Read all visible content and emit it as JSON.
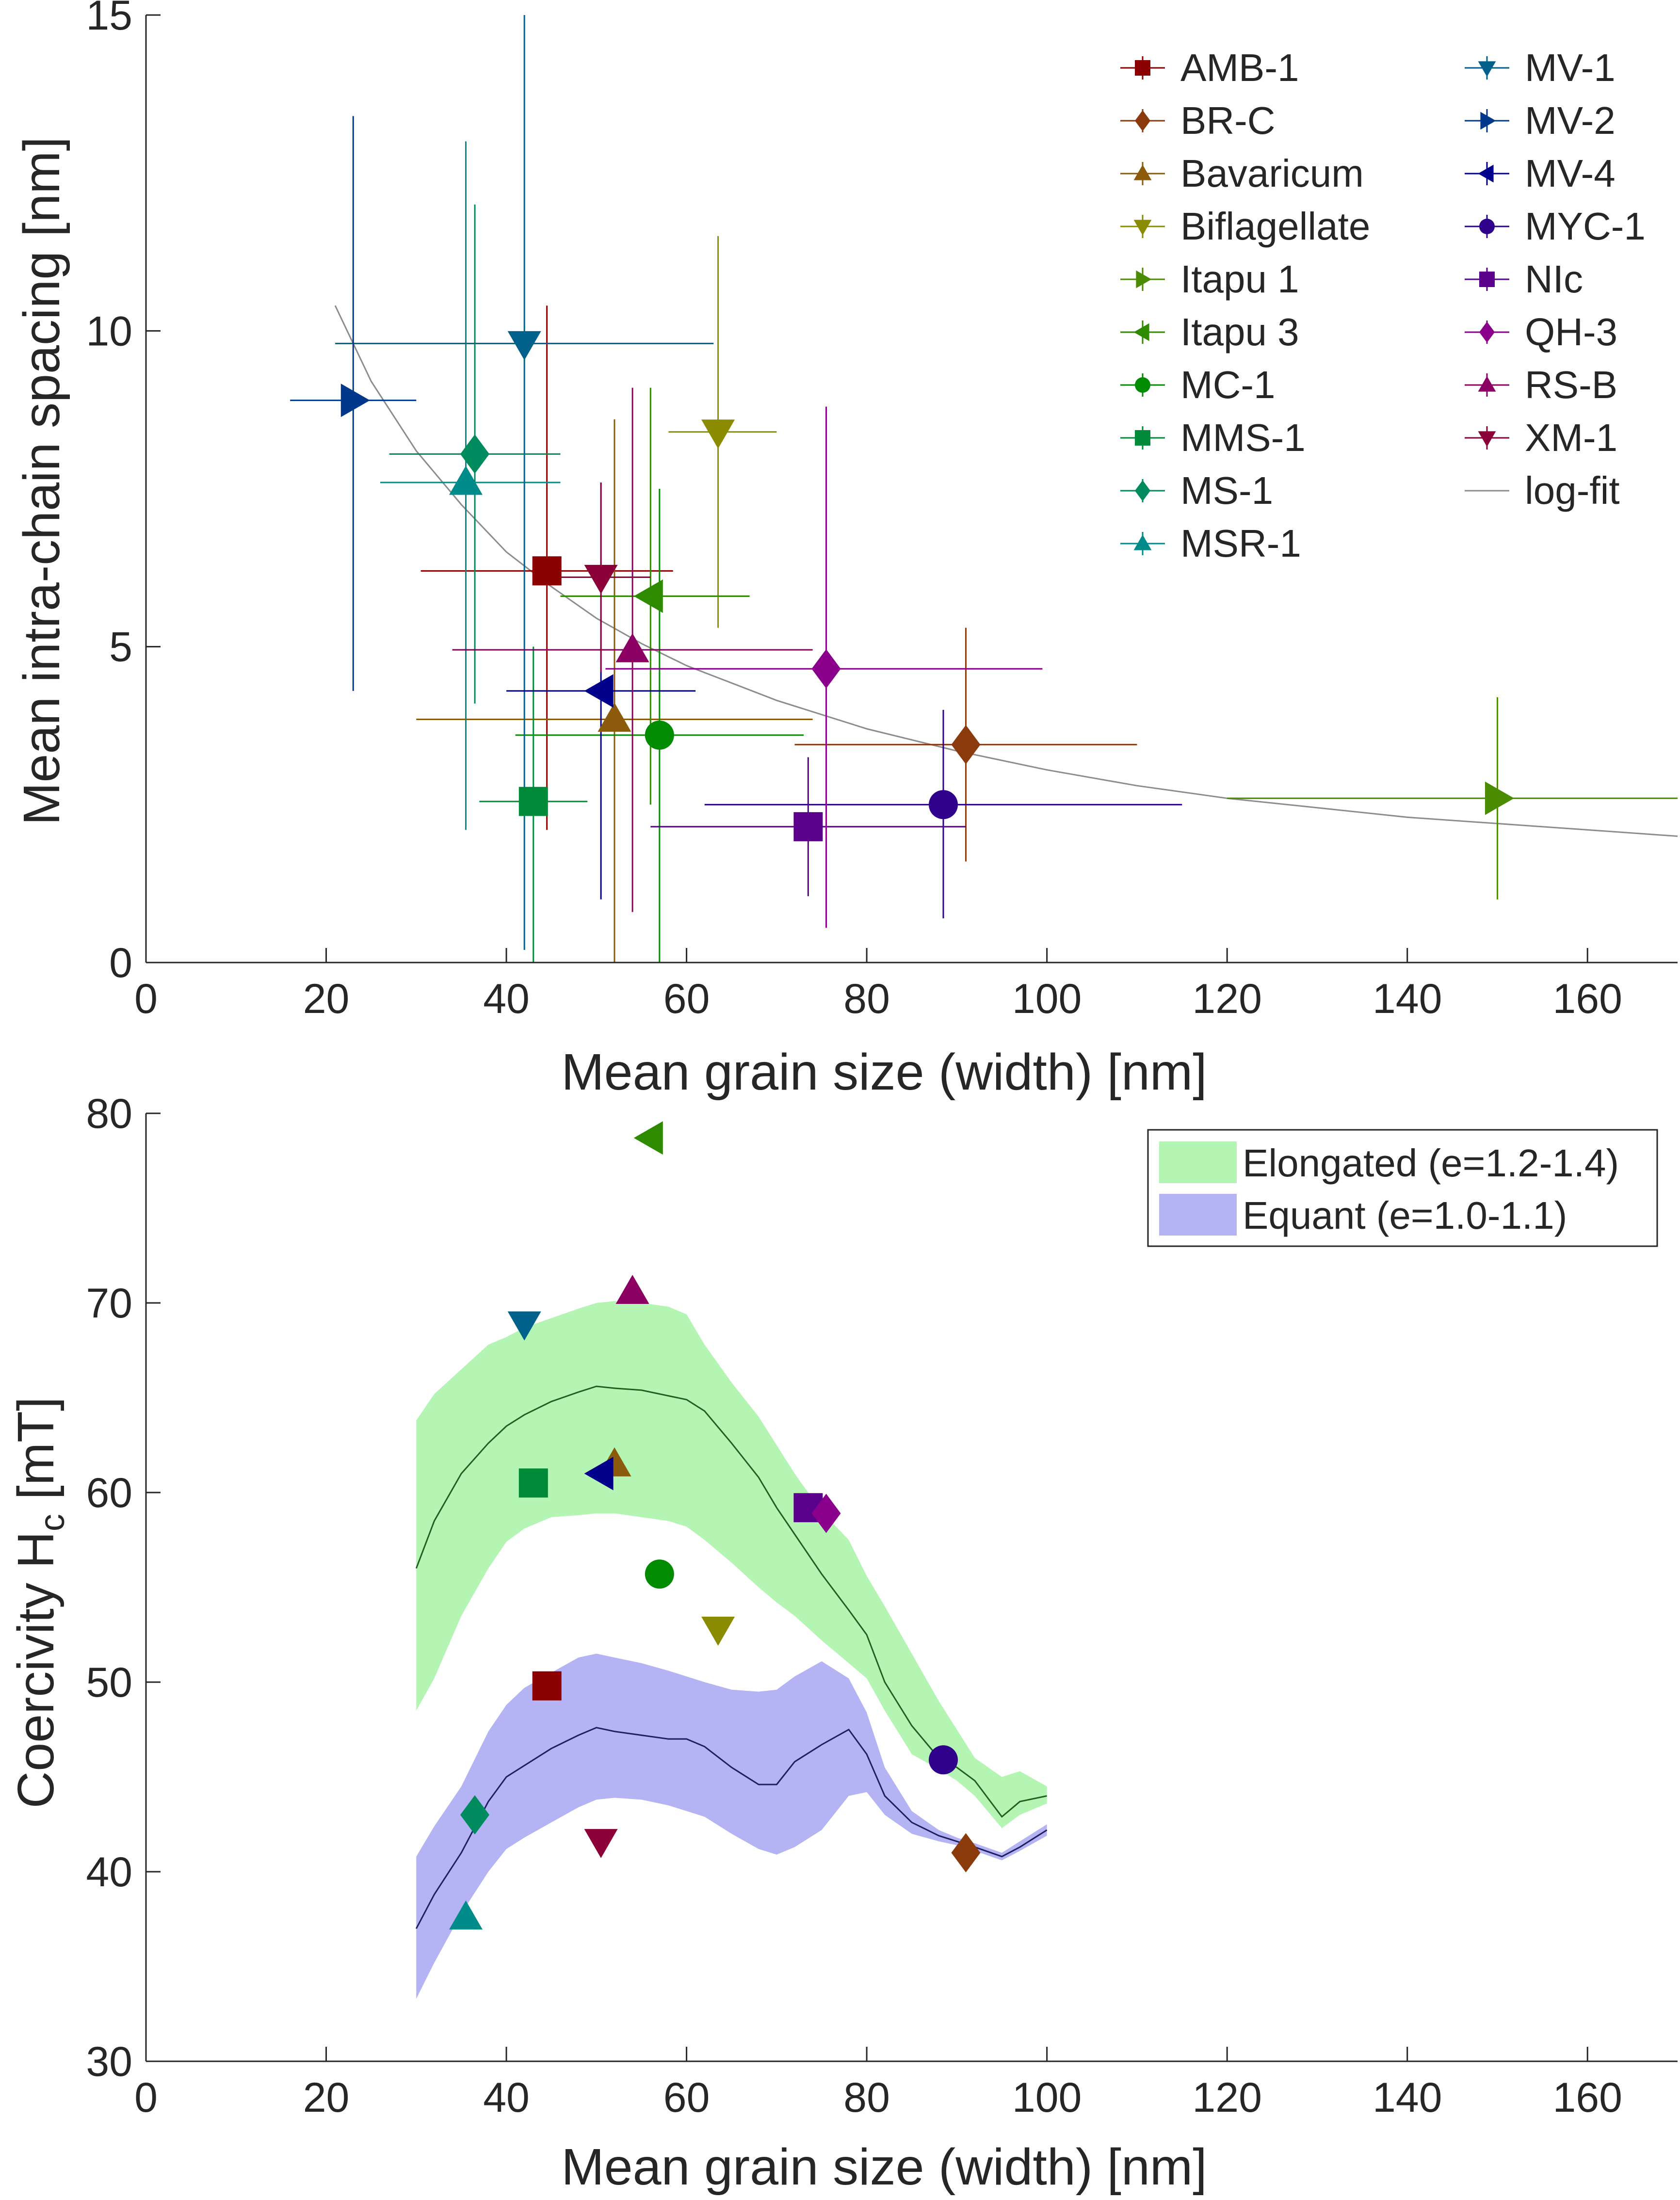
{
  "chart_data": [
    {
      "type": "scatter",
      "xlabel": "Mean grain size (width) [nm]",
      "ylabel": "Mean intra-chain spacing [nm]",
      "xlim": [
        0,
        170
      ],
      "ylim": [
        0,
        15
      ],
      "xticks": [
        "0",
        "20",
        "40",
        "60",
        "80",
        "100",
        "120",
        "140",
        "160"
      ],
      "yticks": [
        "0",
        "5",
        "10",
        "15"
      ],
      "grid": false,
      "legend_position": "top-right",
      "fit": {
        "name": "log-fit",
        "color": "#8c8c8c",
        "x": [
          21,
          25,
          30,
          35,
          40,
          45,
          50,
          55,
          60,
          70,
          80,
          90,
          100,
          110,
          120,
          130,
          140,
          150,
          160,
          170
        ],
        "y": [
          10.4,
          9.2,
          8.1,
          7.25,
          6.5,
          5.95,
          5.45,
          5.05,
          4.7,
          4.15,
          3.7,
          3.35,
          3.05,
          2.8,
          2.6,
          2.45,
          2.3,
          2.2,
          2.1,
          2.0
        ]
      },
      "series": [
        {
          "name": "AMB-1",
          "marker": "square",
          "color": "#8b0000",
          "x": 44.5,
          "y": 6.2,
          "x_err": [
            30.5,
            58.5
          ],
          "y_err": [
            2.1,
            10.4
          ]
        },
        {
          "name": "BR-C",
          "marker": "diamond",
          "color": "#8b3a0b",
          "x": 91,
          "y": 3.45,
          "x_err": [
            72,
            110
          ],
          "y_err": [
            1.6,
            5.3
          ]
        },
        {
          "name": "Bavaricum",
          "marker": "triangle-up",
          "color": "#8b5a0b",
          "x": 52,
          "y": 3.85,
          "x_err": [
            30,
            74
          ],
          "y_err": [
            0,
            8.6
          ]
        },
        {
          "name": "Biflagellate",
          "marker": "triangle-down",
          "color": "#8b8b00",
          "x": 63.5,
          "y": 8.4,
          "x_err": [
            58,
            70
          ],
          "y_err": [
            5.3,
            11.5
          ]
        },
        {
          "name": "Itapu 1",
          "marker": "triangle-right",
          "color": "#4a8b00",
          "x": 150,
          "y": 2.6,
          "x_err": [
            120,
            170
          ],
          "y_err": [
            1.0,
            4.2
          ]
        },
        {
          "name": "Itapu 3",
          "marker": "triangle-left",
          "color": "#2e8b00",
          "x": 56,
          "y": 5.8,
          "x_err": [
            46,
            67
          ],
          "y_err": [
            2.5,
            9.1
          ]
        },
        {
          "name": "MC-1",
          "marker": "circle",
          "color": "#008b00",
          "x": 57,
          "y": 3.6,
          "x_err": [
            41,
            73
          ],
          "y_err": [
            0,
            7.5
          ]
        },
        {
          "name": "MMS-1",
          "marker": "square",
          "color": "#008b3a",
          "x": 43,
          "y": 2.55,
          "x_err": [
            37,
            49
          ],
          "y_err": [
            0,
            5.0
          ]
        },
        {
          "name": "MS-1",
          "marker": "diamond",
          "color": "#008b5e",
          "x": 36.5,
          "y": 8.05,
          "x_err": [
            27,
            46
          ],
          "y_err": [
            4.1,
            12.0
          ]
        },
        {
          "name": "MSR-1",
          "marker": "triangle-up",
          "color": "#008b8b",
          "x": 35.5,
          "y": 7.6,
          "x_err": [
            26,
            46
          ],
          "y_err": [
            2.1,
            13.0
          ]
        },
        {
          "name": "MV-1",
          "marker": "triangle-down",
          "color": "#00628b",
          "x": 42,
          "y": 9.8,
          "x_err": [
            21,
            63
          ],
          "y_err": [
            0.2,
            15.0
          ]
        },
        {
          "name": "MV-2",
          "marker": "triangle-right",
          "color": "#00388b",
          "x": 23,
          "y": 8.9,
          "x_err": [
            16,
            30
          ],
          "y_err": [
            4.3,
            13.4
          ]
        },
        {
          "name": "MV-4",
          "marker": "triangle-left",
          "color": "#00008b",
          "x": 50.5,
          "y": 4.3,
          "x_err": [
            40,
            61
          ],
          "y_err": [
            1.0,
            7.6
          ]
        },
        {
          "name": "MYC-1",
          "marker": "circle",
          "color": "#2e008b",
          "x": 88.5,
          "y": 2.5,
          "x_err": [
            62,
            115
          ],
          "y_err": [
            0.7,
            4.0
          ]
        },
        {
          "name": "NIc",
          "marker": "square",
          "color": "#5a008b",
          "x": 73.5,
          "y": 2.15,
          "x_err": [
            56,
            91
          ],
          "y_err": [
            1.05,
            3.25
          ]
        },
        {
          "name": "QH-3",
          "marker": "diamond",
          "color": "#8b008b",
          "x": 75.5,
          "y": 4.65,
          "x_err": [
            51,
            99.5
          ],
          "y_err": [
            0.55,
            8.8
          ]
        },
        {
          "name": "RS-B",
          "marker": "triangle-up",
          "color": "#8b0062",
          "x": 54,
          "y": 4.95,
          "x_err": [
            34,
            74
          ],
          "y_err": [
            0.8,
            9.1
          ]
        },
        {
          "name": "XM-1",
          "marker": "triangle-down",
          "color": "#8b0038",
          "x": 50.5,
          "y": 6.1,
          "x_err": [
            45,
            56
          ],
          "y_err": [
            4.6,
            7.6
          ]
        }
      ]
    },
    {
      "type": "area",
      "xlabel": "Mean grain size (width) [nm]",
      "ylabel_main": "Coercivity H",
      "ylabel_sub": "c",
      "ylabel_unit": " [mT]",
      "xlim": [
        0,
        170
      ],
      "ylim": [
        30,
        80
      ],
      "xticks": [
        "0",
        "20",
        "40",
        "60",
        "80",
        "100",
        "120",
        "140",
        "160"
      ],
      "yticks": [
        "30",
        "40",
        "50",
        "60",
        "70",
        "80"
      ],
      "grid": false,
      "legend_position": "top-right",
      "bands": [
        {
          "name": "Elongated (e=1.2-1.4)",
          "color": "#b4f5b4",
          "line_color": "#1f5f1f",
          "x": [
            30,
            32,
            35,
            38,
            40,
            42,
            45,
            48,
            50,
            52,
            55,
            58,
            60,
            62,
            65,
            68,
            70,
            72,
            75,
            78,
            80,
            82,
            85,
            88,
            90,
            92,
            95,
            97,
            100
          ],
          "upper": [
            63.8,
            65.2,
            66.5,
            67.8,
            68.2,
            68.7,
            69.2,
            69.7,
            70.0,
            70.1,
            70.0,
            69.8,
            69.4,
            67.8,
            65.8,
            64.0,
            62.5,
            61.0,
            59.0,
            57.5,
            55.6,
            54.0,
            51.5,
            49.0,
            47.5,
            46.0,
            45.0,
            45.3,
            44.5
          ],
          "mid": [
            56.0,
            58.5,
            61.0,
            62.6,
            63.5,
            64.1,
            64.8,
            65.3,
            65.6,
            65.5,
            65.4,
            65.1,
            64.9,
            64.3,
            62.6,
            60.8,
            59.2,
            57.8,
            55.7,
            53.8,
            52.5,
            50.0,
            47.7,
            46.0,
            45.5,
            44.8,
            42.9,
            43.7,
            44.0
          ],
          "lower": [
            48.5,
            50.2,
            53.5,
            56.0,
            57.4,
            58.1,
            58.7,
            58.8,
            58.9,
            58.9,
            58.7,
            58.5,
            58.2,
            57.5,
            56.3,
            55.0,
            54.2,
            53.5,
            52.2,
            51.0,
            50.2,
            48.5,
            46.2,
            45.4,
            44.8,
            44.0,
            42.3,
            43.0,
            43.6
          ]
        },
        {
          "name": "Equant (e=1.0-1.1)",
          "color": "#b4b4f5",
          "line_color": "#1f1f5f",
          "x": [
            30,
            32,
            35,
            38,
            40,
            42,
            45,
            48,
            50,
            52,
            55,
            58,
            60,
            62,
            65,
            68,
            70,
            72,
            75,
            78,
            80,
            82,
            85,
            88,
            90,
            92,
            95,
            97,
            100
          ],
          "upper": [
            40.8,
            42.4,
            44.5,
            47.4,
            48.8,
            49.7,
            50.5,
            51.3,
            51.5,
            51.3,
            51.0,
            50.6,
            50.3,
            50.0,
            49.6,
            49.5,
            49.6,
            50.3,
            51.1,
            50.2,
            48.4,
            45.5,
            43.2,
            42.2,
            41.8,
            41.5,
            41.0,
            41.6,
            42.5
          ],
          "mid": [
            37.0,
            38.8,
            41.0,
            43.7,
            45.0,
            45.6,
            46.5,
            47.2,
            47.6,
            47.4,
            47.2,
            47.0,
            47.0,
            46.6,
            45.5,
            44.6,
            44.6,
            45.8,
            46.7,
            47.5,
            46.2,
            44.0,
            42.6,
            41.9,
            41.6,
            41.3,
            40.8,
            41.3,
            42.2
          ],
          "lower": [
            33.3,
            35.2,
            37.8,
            40.0,
            41.2,
            41.8,
            42.6,
            43.4,
            43.8,
            43.9,
            43.8,
            43.5,
            43.2,
            42.9,
            42.0,
            41.2,
            40.9,
            41.3,
            42.2,
            44.0,
            44.2,
            43.0,
            42.0,
            41.6,
            41.4,
            41.1,
            40.6,
            41.1,
            41.9
          ]
        }
      ],
      "points": [
        {
          "ref": "AMB-1",
          "x": 44.5,
          "y": 49.8
        },
        {
          "ref": "BR-C",
          "x": 91,
          "y": 41.0
        },
        {
          "ref": "Bavaricum",
          "x": 52,
          "y": 61.5
        },
        {
          "ref": "Biflagellate",
          "x": 63.5,
          "y": 52.8
        },
        {
          "ref": "Itapu 3",
          "x": 56,
          "y": 78.7
        },
        {
          "ref": "MC-1",
          "x": 57,
          "y": 55.7
        },
        {
          "ref": "MMS-1",
          "x": 43,
          "y": 60.5
        },
        {
          "ref": "MS-1",
          "x": 36.5,
          "y": 43.0
        },
        {
          "ref": "MSR-1",
          "x": 35.5,
          "y": 37.6
        },
        {
          "ref": "MV-1",
          "x": 42,
          "y": 68.9
        },
        {
          "ref": "MV-4",
          "x": 50.5,
          "y": 61.0
        },
        {
          "ref": "MYC-1",
          "x": 88.5,
          "y": 45.9
        },
        {
          "ref": "NIc",
          "x": 73.5,
          "y": 59.2
        },
        {
          "ref": "QH-3",
          "x": 75.5,
          "y": 58.9
        },
        {
          "ref": "RS-B",
          "x": 54,
          "y": 70.6
        },
        {
          "ref": "XM-1",
          "x": 50.5,
          "y": 41.6
        }
      ]
    }
  ]
}
